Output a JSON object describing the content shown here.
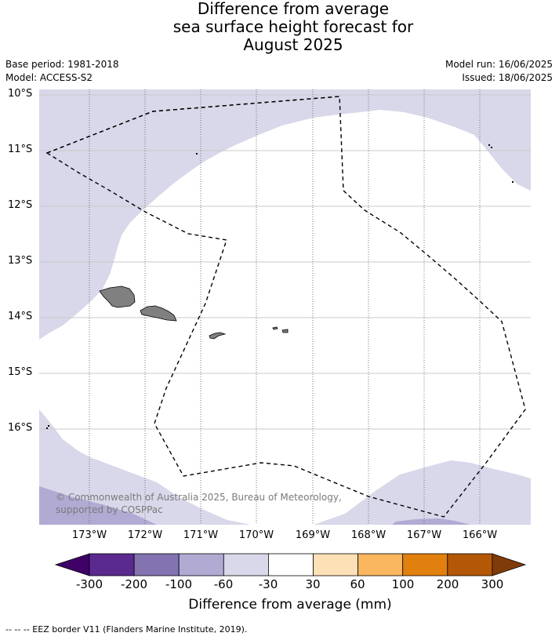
{
  "title": {
    "line1": "Difference from average",
    "line2": "sea surface height forecast for",
    "line3": "August 2025"
  },
  "meta": {
    "base_period": "Base period: 1981-2018",
    "model": "Model: ACCESS-S2",
    "model_run": "Model run: 16/06/2025",
    "issued": "Issued: 18/06/2025"
  },
  "map": {
    "lat_labels": [
      "10°S",
      "11°S",
      "12°S",
      "13°S",
      "14°S",
      "15°S",
      "16°S"
    ],
    "lon_labels": [
      "173°W",
      "172°W",
      "171°W",
      "170°W",
      "169°W",
      "168°W",
      "167°W",
      "166°W"
    ],
    "copyright": "© Commonwealth of Australia 2025, Bureau of Meteorology, supported by COSPPac",
    "colors": {
      "ocean_neutral": "#ffffff",
      "band_-60_-30": "#d8d8ea",
      "band_-100_-60": "#b1aad3",
      "land": "#808080",
      "gridline": "#c8c8c8",
      "eez_border": "#000000"
    }
  },
  "colorbar": {
    "title": "Difference from average (mm)",
    "tick_labels": [
      "-300",
      "-200",
      "-100",
      "-60",
      "-30",
      "30",
      "60",
      "100",
      "200",
      "300"
    ],
    "colors": [
      "#3f0067",
      "#5a2a8f",
      "#8373b0",
      "#b1aad3",
      "#d8d8ea",
      "#ffffff",
      "#fee0b6",
      "#fbb660",
      "#e1800f",
      "#b35806",
      "#7f3b08"
    ]
  },
  "footnote": "--  --  -- EEZ border V11 (Flanders Marine Institute, 2019)."
}
